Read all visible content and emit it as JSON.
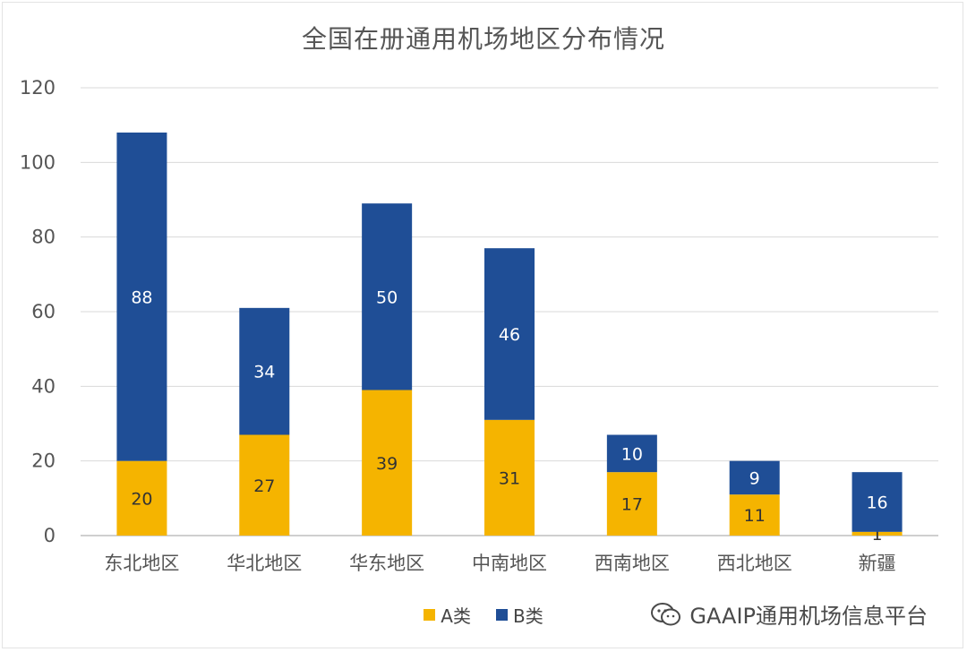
{
  "chart_data": {
    "type": "bar",
    "stacked": true,
    "title": "全国在册通用机场地区分布情况",
    "categories": [
      "东北地区",
      "华北地区",
      "华东地区",
      "中南地区",
      "西南地区",
      "西北地区",
      "新疆"
    ],
    "series": [
      {
        "name": "A类",
        "values": [
          20,
          27,
          39,
          31,
          17,
          11,
          1
        ],
        "labels": [
          "20",
          "27",
          "39",
          "31",
          "17",
          "11",
          "1"
        ],
        "color": "#f5b400",
        "label_color": "#333333"
      },
      {
        "name": "B类",
        "values": [
          88,
          34,
          50,
          46,
          10,
          9,
          16
        ],
        "labels": [
          "88",
          "34",
          "50",
          "46",
          "10",
          "9",
          "16"
        ],
        "color": "#1f4e96",
        "label_color": "#ffffff"
      }
    ],
    "ylim": [
      0,
      120
    ],
    "yticks": [
      "0",
      "20",
      "40",
      "60",
      "80",
      "100",
      "120"
    ],
    "grid": true,
    "legend_position": "bottom"
  },
  "watermark_brand": {
    "text": "GAAIP通用机场信息平台",
    "icon": "wechat-icon"
  },
  "colors": {
    "grid": "#d9d9d9",
    "axis_text": "#555555"
  }
}
